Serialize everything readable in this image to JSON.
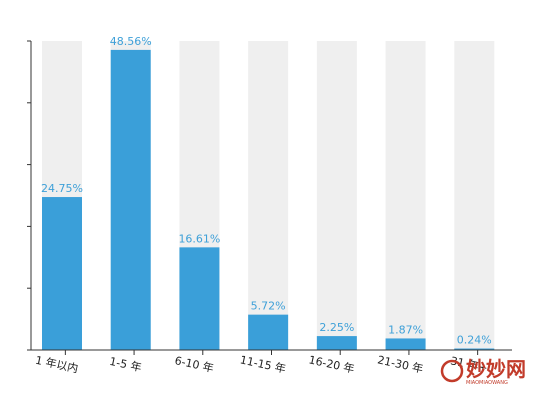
{
  "chart_data": {
    "type": "bar",
    "categories": [
      "1 年以内",
      "1-5 年",
      "6-10 年",
      "11-15 年",
      "16-20 年",
      "21-30 年",
      "31 年+"
    ],
    "values": [
      24.75,
      48.56,
      16.61,
      5.72,
      2.25,
      1.87,
      0.24
    ],
    "value_labels": [
      "24.75%",
      "48.56%",
      "16.61%",
      "5.72%",
      "2.25%",
      "1.87%",
      "0.24%"
    ],
    "ylim": [
      0,
      50
    ],
    "y_tick_count": 6,
    "title": "",
    "xlabel": "",
    "ylabel": "",
    "grid": false,
    "legend": "none",
    "colors": {
      "bar": "#3a9fd9",
      "background_bar": "#efefef",
      "value_label": "#3ea0d8",
      "axis": "#333333"
    }
  },
  "watermark": {
    "text": "妙妙网",
    "subtext": "MIAOMIAOWANG",
    "color": "#c23b2a"
  }
}
